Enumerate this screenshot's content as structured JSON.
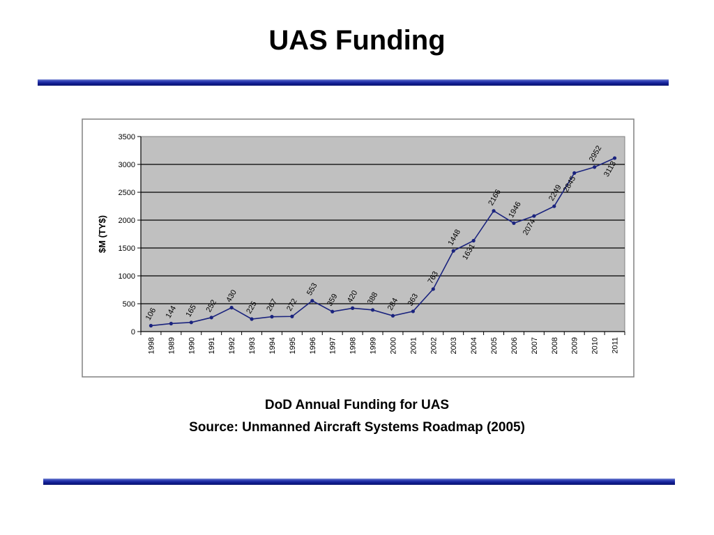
{
  "page": {
    "title": "UAS Funding",
    "caption": "DoD Annual Funding for UAS",
    "source": "Source:  Unmanned Aircraft Systems Roadmap (2005)"
  },
  "colors": {
    "rule": "#1a2a9c",
    "series": "#1a237e",
    "plot_area": "#c0c0c0",
    "grid": "#000000"
  },
  "chart_data": {
    "type": "line",
    "title": "",
    "xlabel": "",
    "ylabel": "$M (TY$)",
    "ylim": [
      0,
      3500
    ],
    "yticks": [
      0,
      500,
      1000,
      1500,
      2000,
      2500,
      3000,
      3500
    ],
    "grid": true,
    "categories": [
      "1998",
      "1989",
      "1990",
      "1991",
      "1992",
      "1993",
      "1994",
      "1995",
      "1996",
      "1997",
      "1998",
      "1999",
      "2000",
      "2001",
      "2002",
      "2003",
      "2004",
      "2005",
      "2006",
      "2007",
      "2008",
      "2009",
      "2010",
      "2011"
    ],
    "series": [
      {
        "values": [
          106,
          144,
          165,
          252,
          430,
          225,
          267,
          272,
          553,
          359,
          420,
          388,
          284,
          363,
          763,
          1448,
          1631,
          2166,
          1946,
          2074,
          2249,
          2845,
          2952,
          3113
        ],
        "data_labels": [
          "106",
          "144",
          "165",
          "252",
          "430",
          "225",
          "267",
          "272",
          "553",
          "359",
          "420",
          "388",
          "284",
          "363",
          "763",
          "1448",
          "1631",
          "2166",
          "1946",
          "2074",
          "2249",
          "2845",
          "2952",
          "3113"
        ]
      }
    ]
  }
}
